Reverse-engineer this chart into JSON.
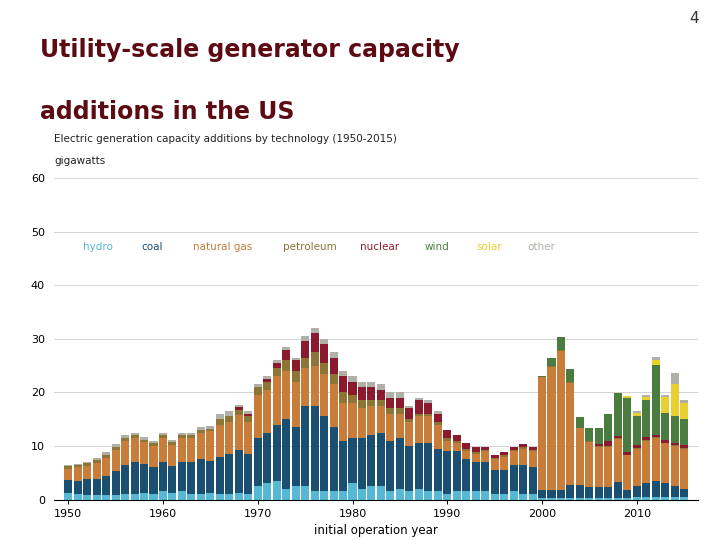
{
  "title_line1": "Utility-scale generator capacity",
  "title_line2": "additions in the US",
  "slide_number": "4",
  "chart_title": "Electric generation capacity additions by technology (1950-2015)",
  "chart_subtitle": "gigawatts",
  "xlabel": "initial operation year",
  "ylim": [
    0,
    62
  ],
  "yticks": [
    0,
    10,
    20,
    30,
    40,
    50,
    60
  ],
  "xticks": [
    1950,
    1960,
    1970,
    1980,
    1990,
    2000,
    2010
  ],
  "technologies": [
    "hydro",
    "coal",
    "natural gas",
    "petroleum",
    "nuclear",
    "wind",
    "solar",
    "other"
  ],
  "colors": {
    "hydro": "#57b8d5",
    "coal": "#1b4f72",
    "natural gas": "#c87d3a",
    "petroleum": "#8c7535",
    "nuclear": "#8b1a2f",
    "wind": "#4a7c3f",
    "solar": "#e8d030",
    "other": "#b0b0a8"
  },
  "legend_colors": {
    "hydro": "#57b8d5",
    "coal": "#1b4f72",
    "natural gas": "#c87d3a",
    "petroleum": "#8c7535",
    "nuclear": "#8b1a2f",
    "wind": "#4a7c3f",
    "solar": "#e8d030",
    "other": "#b0b0a8"
  },
  "title_color": "#5c0a14",
  "header_bar_color": "#5c0a14",
  "background_color": "#ffffff",
  "years": [
    1950,
    1951,
    1952,
    1953,
    1954,
    1955,
    1956,
    1957,
    1958,
    1959,
    1960,
    1961,
    1962,
    1963,
    1964,
    1965,
    1966,
    1967,
    1968,
    1969,
    1970,
    1971,
    1972,
    1973,
    1974,
    1975,
    1976,
    1977,
    1978,
    1979,
    1980,
    1981,
    1982,
    1983,
    1984,
    1985,
    1986,
    1987,
    1988,
    1989,
    1990,
    1991,
    1992,
    1993,
    1994,
    1995,
    1996,
    1997,
    1998,
    1999,
    2000,
    2001,
    2002,
    2003,
    2004,
    2005,
    2006,
    2007,
    2008,
    2009,
    2010,
    2011,
    2012,
    2013,
    2014,
    2015
  ],
  "data": {
    "hydro": [
      1.2,
      1.0,
      0.8,
      0.8,
      0.8,
      0.8,
      1.0,
      1.0,
      1.2,
      1.0,
      1.5,
      1.2,
      1.5,
      1.0,
      1.0,
      1.2,
      1.0,
      1.0,
      1.2,
      1.0,
      2.5,
      3.0,
      3.5,
      2.0,
      2.5,
      2.5,
      1.5,
      1.5,
      1.5,
      1.5,
      3.0,
      2.0,
      2.5,
      2.5,
      1.5,
      2.0,
      1.5,
      2.0,
      1.5,
      1.5,
      1.0,
      1.5,
      1.5,
      1.5,
      1.5,
      1.0,
      1.0,
      1.5,
      1.0,
      1.0,
      0.3,
      0.3,
      0.3,
      0.3,
      0.3,
      0.3,
      0.3,
      0.3,
      0.3,
      0.3,
      0.5,
      0.5,
      0.5,
      0.5,
      0.5,
      0.5
    ],
    "coal": [
      2.5,
      2.5,
      3.0,
      3.0,
      3.5,
      4.5,
      5.5,
      6.0,
      5.5,
      5.0,
      5.5,
      5.0,
      5.5,
      6.0,
      6.5,
      6.0,
      7.0,
      7.5,
      8.0,
      7.5,
      9.0,
      9.5,
      10.5,
      13.0,
      11.0,
      15.0,
      16.0,
      14.0,
      12.0,
      9.5,
      8.5,
      9.5,
      9.5,
      10.0,
      9.5,
      9.5,
      8.5,
      8.5,
      9.0,
      8.0,
      8.0,
      7.5,
      6.0,
      5.5,
      5.5,
      4.5,
      4.5,
      5.0,
      5.5,
      5.0,
      1.5,
      1.5,
      1.5,
      2.5,
      2.5,
      2.0,
      2.0,
      2.0,
      3.0,
      1.5,
      2.0,
      2.5,
      3.0,
      2.5,
      2.0,
      1.5
    ],
    "natural gas": [
      2.0,
      2.5,
      2.5,
      3.0,
      3.5,
      4.0,
      4.5,
      4.5,
      4.0,
      4.0,
      4.5,
      4.0,
      4.5,
      4.5,
      5.0,
      5.5,
      6.0,
      6.0,
      6.5,
      6.0,
      8.0,
      8.0,
      9.0,
      9.0,
      8.5,
      7.0,
      7.5,
      8.0,
      8.0,
      7.0,
      6.5,
      5.5,
      5.5,
      5.0,
      5.0,
      4.5,
      4.5,
      5.0,
      5.0,
      4.5,
      2.0,
      1.5,
      1.5,
      1.5,
      2.0,
      2.0,
      2.5,
      2.5,
      3.0,
      3.0,
      21.0,
      23.0,
      26.0,
      19.0,
      10.5,
      8.5,
      7.5,
      7.5,
      8.0,
      6.5,
      7.0,
      8.0,
      8.0,
      7.5,
      7.5,
      7.5
    ],
    "petroleum": [
      0.5,
      0.5,
      0.5,
      0.5,
      0.5,
      0.5,
      0.5,
      0.5,
      0.5,
      0.5,
      0.5,
      0.5,
      0.5,
      0.5,
      0.5,
      0.5,
      1.0,
      1.0,
      1.0,
      1.0,
      1.5,
      1.5,
      1.5,
      2.0,
      2.0,
      2.0,
      2.5,
      2.0,
      2.0,
      2.0,
      1.5,
      1.5,
      1.0,
      1.0,
      1.0,
      1.0,
      0.5,
      0.5,
      0.5,
      0.5,
      0.5,
      0.5,
      0.5,
      0.3,
      0.3,
      0.3,
      0.3,
      0.3,
      0.3,
      0.3,
      0.1,
      0.1,
      0.1,
      0.1,
      0.1,
      0.1,
      0.1,
      0.1,
      0.1,
      0.1,
      0.1,
      0.1,
      0.1,
      0.1,
      0.1,
      0.1
    ],
    "nuclear": [
      0.0,
      0.0,
      0.0,
      0.0,
      0.0,
      0.0,
      0.0,
      0.0,
      0.0,
      0.0,
      0.0,
      0.0,
      0.0,
      0.0,
      0.0,
      0.0,
      0.0,
      0.0,
      0.5,
      0.5,
      0.0,
      0.5,
      1.0,
      2.0,
      2.0,
      3.0,
      3.5,
      3.5,
      3.0,
      3.0,
      2.5,
      2.5,
      2.5,
      2.0,
      2.0,
      2.0,
      2.0,
      2.5,
      2.0,
      1.5,
      1.5,
      1.0,
      1.0,
      1.0,
      0.5,
      0.5,
      0.5,
      0.5,
      0.5,
      0.5,
      0.0,
      0.0,
      0.0,
      0.0,
      0.0,
      0.0,
      0.5,
      1.0,
      0.5,
      0.5,
      0.5,
      0.5,
      0.5,
      0.5,
      0.5,
      0.5
    ],
    "wind": [
      0.0,
      0.0,
      0.0,
      0.0,
      0.0,
      0.0,
      0.0,
      0.0,
      0.0,
      0.0,
      0.0,
      0.0,
      0.0,
      0.0,
      0.0,
      0.0,
      0.0,
      0.0,
      0.0,
      0.0,
      0.0,
      0.0,
      0.0,
      0.0,
      0.0,
      0.0,
      0.0,
      0.0,
      0.0,
      0.0,
      0.0,
      0.0,
      0.0,
      0.0,
      0.0,
      0.0,
      0.0,
      0.0,
      0.0,
      0.0,
      0.0,
      0.0,
      0.0,
      0.0,
      0.0,
      0.0,
      0.0,
      0.0,
      0.0,
      0.0,
      0.2,
      1.5,
      2.5,
      2.5,
      2.0,
      2.5,
      3.0,
      5.0,
      8.0,
      10.0,
      5.5,
      7.0,
      13.0,
      5.0,
      5.0,
      5.0
    ],
    "solar": [
      0.0,
      0.0,
      0.0,
      0.0,
      0.0,
      0.0,
      0.0,
      0.0,
      0.0,
      0.0,
      0.0,
      0.0,
      0.0,
      0.0,
      0.0,
      0.0,
      0.0,
      0.0,
      0.0,
      0.0,
      0.0,
      0.0,
      0.0,
      0.0,
      0.0,
      0.0,
      0.0,
      0.0,
      0.0,
      0.0,
      0.0,
      0.0,
      0.0,
      0.0,
      0.0,
      0.0,
      0.0,
      0.0,
      0.0,
      0.0,
      0.0,
      0.0,
      0.0,
      0.0,
      0.0,
      0.0,
      0.0,
      0.0,
      0.0,
      0.0,
      0.0,
      0.0,
      0.0,
      0.0,
      0.0,
      0.0,
      0.0,
      0.0,
      0.0,
      0.5,
      0.5,
      0.5,
      1.0,
      3.0,
      6.0,
      3.0
    ],
    "other": [
      0.2,
      0.2,
      0.2,
      0.5,
      0.5,
      0.5,
      0.5,
      0.5,
      0.5,
      0.5,
      0.5,
      0.5,
      0.5,
      0.5,
      0.5,
      0.5,
      1.0,
      1.0,
      0.5,
      0.5,
      0.5,
      0.5,
      0.5,
      0.5,
      0.5,
      1.0,
      1.0,
      1.0,
      1.0,
      1.0,
      1.0,
      1.0,
      1.0,
      1.0,
      1.0,
      1.0,
      0.5,
      0.5,
      0.5,
      0.5,
      0.0,
      0.0,
      0.0,
      0.0,
      0.0,
      0.0,
      0.0,
      0.0,
      0.0,
      0.0,
      0.0,
      0.0,
      0.0,
      0.0,
      0.0,
      0.0,
      0.0,
      0.0,
      0.0,
      0.0,
      0.5,
      0.5,
      0.5,
      0.5,
      2.0,
      0.5
    ]
  }
}
